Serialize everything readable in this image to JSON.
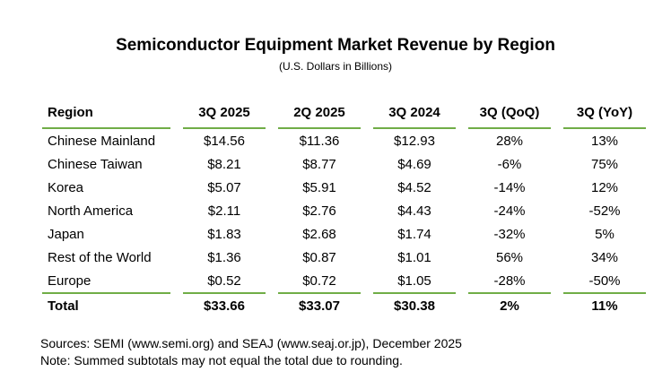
{
  "title": "Semiconductor Equipment Market Revenue by Region",
  "subtitle": "(U.S. Dollars in Billions)",
  "headers": [
    "Region",
    "3Q 2025",
    "2Q 2025",
    "3Q 2024",
    "3Q (QoQ)",
    "3Q (YoY)"
  ],
  "rows": [
    [
      "Chinese Mainland",
      "$14.56",
      "$11.36",
      "$12.93",
      "28%",
      "13%"
    ],
    [
      "Chinese Taiwan",
      "$8.21",
      "$8.77",
      "$4.69",
      "-6%",
      "75%"
    ],
    [
      "Korea",
      "$5.07",
      "$5.91",
      "$4.52",
      "-14%",
      "12%"
    ],
    [
      "North America",
      "$2.11",
      "$2.76",
      "$4.43",
      "-24%",
      "-52%"
    ],
    [
      "Japan",
      "$1.83",
      "$2.68",
      "$1.74",
      "-32%",
      "5%"
    ],
    [
      "Rest of the World",
      "$1.36",
      "$0.87",
      "$1.01",
      "56%",
      "34%"
    ],
    [
      "Europe",
      "$0.52",
      "$0.72",
      "$1.05",
      "-28%",
      "-50%"
    ]
  ],
  "total": [
    "Total",
    "$33.66",
    "$33.07",
    "$30.38",
    "2%",
    "11%"
  ],
  "notes": [
    "Sources: SEMI (www.semi.org) and SEAJ (www.seaj.or.jp), December 2025",
    "Note: Summed subtotals may not equal the total due to rounding."
  ],
  "colors": {
    "rule": "#70ad47"
  }
}
